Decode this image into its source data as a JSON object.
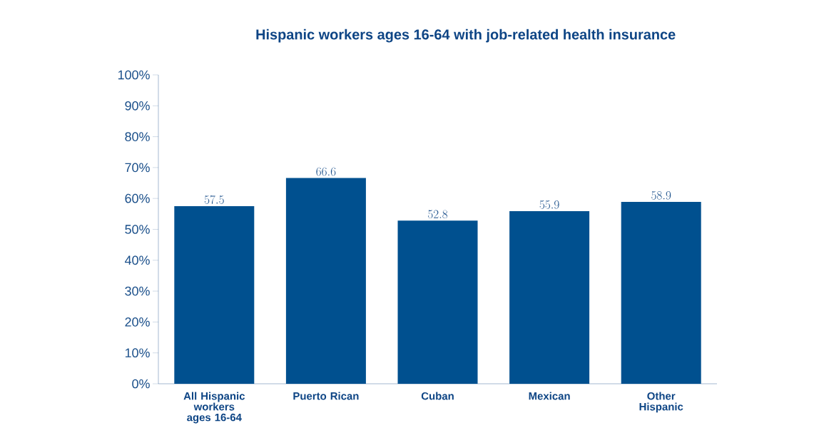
{
  "chart_data": {
    "type": "bar",
    "title": "Hispanic workers ages 16-64 with job-related health insurance",
    "categories": [
      "All Hispanic workers ages 16-64",
      "Puerto Rican",
      "Cuban",
      "Mexican",
      "Other Hispanic"
    ],
    "values": [
      57.5,
      66.6,
      52.8,
      55.9,
      58.9
    ],
    "color": "#00508f",
    "data_labels": true,
    "ylim": [
      0,
      100
    ],
    "yticks": [
      {
        "value": 0,
        "label": "0%"
      },
      {
        "value": 10,
        "label": "10%"
      },
      {
        "value": 20,
        "label": "20%"
      },
      {
        "value": 30,
        "label": "30%"
      },
      {
        "value": 40,
        "label": "40%"
      },
      {
        "value": 50,
        "label": "50%"
      },
      {
        "value": 60,
        "label": "60%"
      },
      {
        "value": 70,
        "label": "70%"
      },
      {
        "value": 80,
        "label": "80%"
      },
      {
        "value": 90,
        "label": "90%"
      },
      {
        "value": 100,
        "label": "100%"
      }
    ],
    "grid": false
  }
}
